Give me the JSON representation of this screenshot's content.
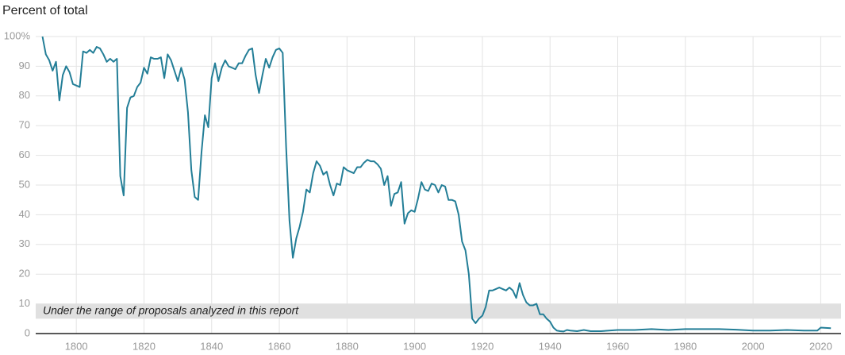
{
  "chart_data": {
    "type": "line",
    "y_axis_label": "Percent of total",
    "xlim": [
      1788,
      2026
    ],
    "ylim": [
      0,
      100
    ],
    "xticks": [
      1800,
      1820,
      1840,
      1860,
      1880,
      1900,
      1920,
      1940,
      1960,
      1980,
      2000,
      2020
    ],
    "yticks": [
      0,
      10,
      20,
      30,
      40,
      50,
      60,
      70,
      80,
      90,
      {
        "value": 100,
        "label": "100%"
      }
    ],
    "grid": true,
    "annotations": [
      {
        "text": "Under the range of proposals analyzed in this report",
        "y_range": [
          5,
          10
        ],
        "color": "#e0e0e0"
      }
    ],
    "x": [
      1790,
      1791,
      1792,
      1793,
      1794,
      1795,
      1796,
      1797,
      1798,
      1799,
      1800,
      1801,
      1802,
      1803,
      1804,
      1805,
      1806,
      1807,
      1808,
      1809,
      1810,
      1811,
      1812,
      1813,
      1814,
      1815,
      1816,
      1817,
      1818,
      1819,
      1820,
      1821,
      1822,
      1823,
      1824,
      1825,
      1826,
      1827,
      1828,
      1829,
      1830,
      1831,
      1832,
      1833,
      1834,
      1835,
      1836,
      1837,
      1838,
      1839,
      1840,
      1841,
      1842,
      1843,
      1844,
      1845,
      1846,
      1847,
      1848,
      1849,
      1850,
      1851,
      1852,
      1853,
      1854,
      1855,
      1856,
      1857,
      1858,
      1859,
      1860,
      1861,
      1862,
      1863,
      1864,
      1865,
      1866,
      1867,
      1868,
      1869,
      1870,
      1871,
      1872,
      1873,
      1874,
      1875,
      1876,
      1877,
      1878,
      1879,
      1880,
      1881,
      1882,
      1883,
      1884,
      1885,
      1886,
      1887,
      1888,
      1889,
      1890,
      1891,
      1892,
      1893,
      1894,
      1895,
      1896,
      1897,
      1898,
      1899,
      1900,
      1901,
      1902,
      1903,
      1904,
      1905,
      1906,
      1907,
      1908,
      1909,
      1910,
      1911,
      1912,
      1913,
      1914,
      1915,
      1916,
      1917,
      1918,
      1919,
      1920,
      1921,
      1922,
      1923,
      1924,
      1925,
      1926,
      1927,
      1928,
      1929,
      1930,
      1931,
      1932,
      1933,
      1934,
      1935,
      1936,
      1937,
      1938,
      1939,
      1940,
      1941,
      1942,
      1943,
      1944,
      1945,
      1946,
      1947,
      1948,
      1950,
      1952,
      1955,
      1960,
      1965,
      1970,
      1975,
      1980,
      1985,
      1990,
      1995,
      2000,
      2005,
      2010,
      2015,
      2019,
      2020,
      2023
    ],
    "series": [
      {
        "color": "#237e97",
        "values": [
          100,
          94,
          92,
          88.5,
          91.5,
          78.5,
          87,
          90,
          88,
          84,
          83.5,
          83,
          95,
          94.5,
          95.5,
          94.5,
          96.5,
          96,
          94,
          91.5,
          92.5,
          91.5,
          92.5,
          53,
          46.5,
          76,
          79.5,
          80,
          83,
          84.5,
          89.5,
          87.5,
          93,
          92.5,
          92.5,
          93,
          86,
          94,
          92,
          88.5,
          85,
          89.5,
          85.5,
          74.5,
          55,
          46,
          45,
          61,
          73.5,
          69.5,
          86,
          91,
          85,
          89.5,
          92,
          90,
          89.5,
          89,
          91,
          91,
          93.5,
          95.5,
          96,
          87,
          81,
          87,
          92.5,
          89.5,
          93,
          95.5,
          96,
          94.5,
          63,
          38,
          25.5,
          32,
          36,
          41,
          48.5,
          47.5,
          54,
          58,
          56.5,
          53.5,
          54.5,
          50,
          46.5,
          50.5,
          50,
          56,
          55,
          54.5,
          54,
          56,
          56,
          57.5,
          58.5,
          58,
          58,
          57,
          55.5,
          50,
          53,
          43,
          47,
          47.5,
          51,
          37,
          40.5,
          41.5,
          41,
          45.5,
          51,
          48.5,
          48,
          50.5,
          50,
          47.5,
          50,
          49.5,
          45,
          45,
          44.5,
          40,
          31,
          28,
          20,
          5,
          3.5,
          5,
          6,
          9,
          14.5,
          14.5,
          15,
          15.5,
          15,
          14.5,
          15.5,
          14.5,
          12,
          17,
          13,
          10.5,
          9.5,
          9.5,
          10,
          6.5,
          6.5,
          5,
          4,
          2,
          1,
          0.8,
          0.7,
          1.2,
          1,
          0.9,
          0.8,
          1.2,
          0.8,
          0.8,
          1.2,
          1.2,
          1.5,
          1.2,
          1.5,
          1.5,
          1.5,
          1.3,
          1,
          1,
          1.2,
          1,
          1,
          2,
          1.8
        ]
      }
    ]
  }
}
